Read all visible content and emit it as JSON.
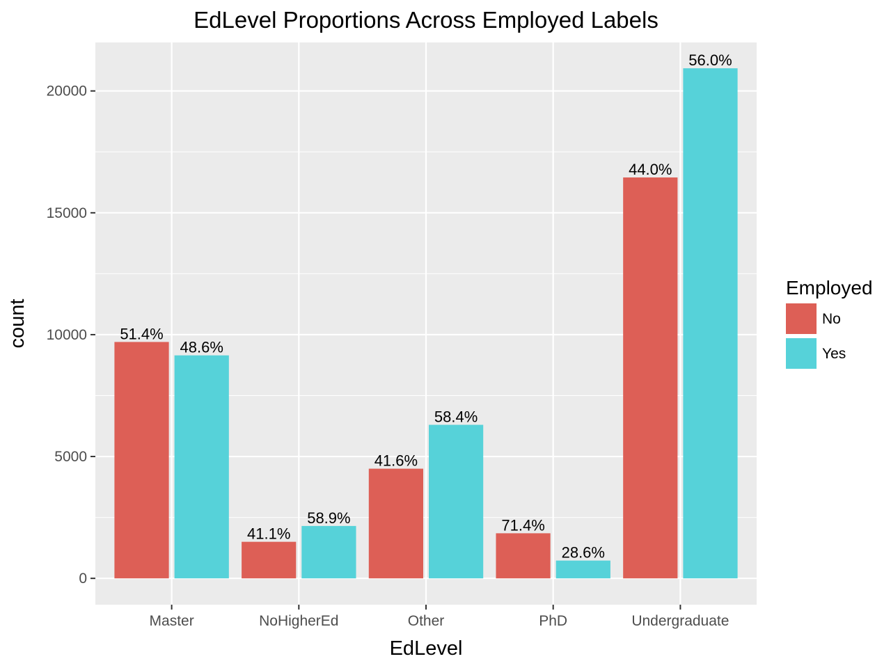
{
  "chart_data": {
    "type": "bar",
    "title": "EdLevel Proportions Across Employed Labels",
    "xlabel": "EdLevel",
    "ylabel": "count",
    "categories": [
      "Master",
      "NoHigherEd",
      "Other",
      "PhD",
      "Undergraduate"
    ],
    "series": [
      {
        "name": "No",
        "color": "#dd5f56",
        "values": [
          9700,
          1500,
          4500,
          1850,
          16450
        ],
        "labels": [
          "51.4%",
          "41.1%",
          "41.6%",
          "71.4%",
          "44.0%"
        ]
      },
      {
        "name": "Yes",
        "color": "#56d2d9",
        "values": [
          9150,
          2150,
          6300,
          730,
          20930
        ],
        "labels": [
          "48.6%",
          "58.9%",
          "58.4%",
          "28.6%",
          "56.0%"
        ]
      }
    ],
    "ylim": [
      -1080,
      21990
    ],
    "yticks": [
      0,
      5000,
      10000,
      15000,
      20000
    ],
    "grid": true,
    "panel_background": "#ebebeb",
    "legend": {
      "title": "Employed",
      "placement": "right"
    }
  }
}
